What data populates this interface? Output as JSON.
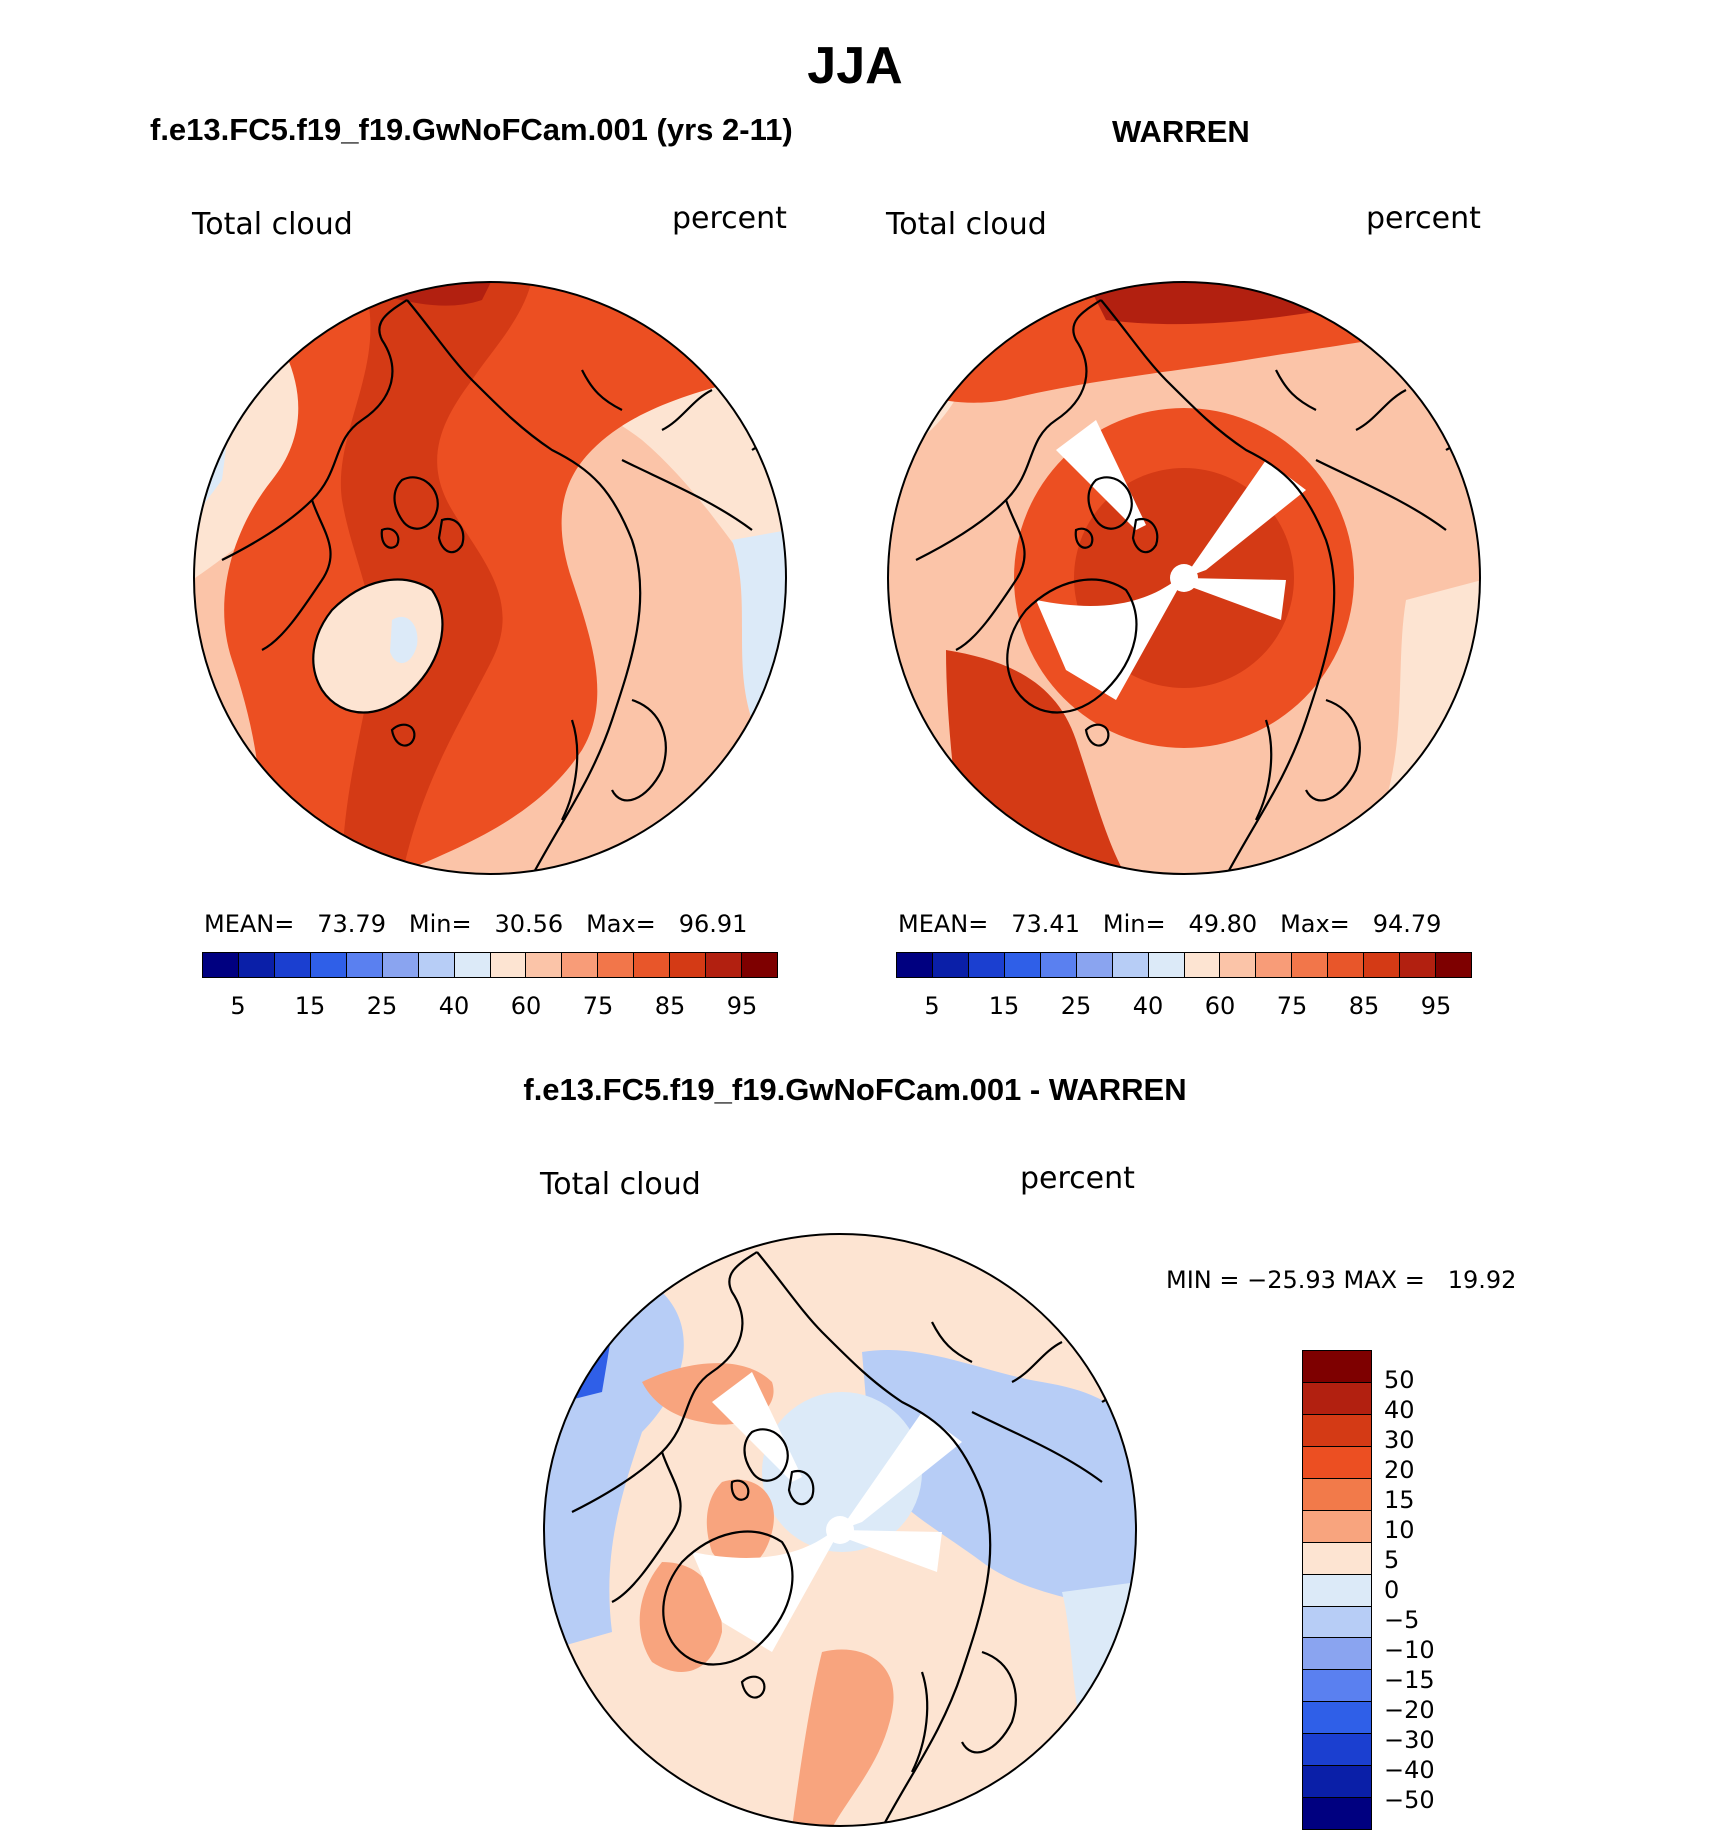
{
  "figure": {
    "title": "JJA"
  },
  "panels": [
    {
      "id": "model",
      "title": "f.e13.FC5.f19_f19.GwNoFCam.001 (yrs 2-11)",
      "variable": "Total cloud",
      "units": "percent",
      "stats": {
        "mean_label": "MEAN=",
        "mean": "73.79",
        "min_label": "Min=",
        "min": "30.56",
        "max_label": "Max=",
        "max": "96.91"
      }
    },
    {
      "id": "obs",
      "title": "WARREN",
      "variable": "Total cloud",
      "units": "percent",
      "stats": {
        "mean_label": "MEAN=",
        "mean": "73.41",
        "min_label": "Min=",
        "min": "49.80",
        "max_label": "Max=",
        "max": "94.79"
      }
    },
    {
      "id": "diff",
      "title": "f.e13.FC5.f19_f19.GwNoFCam.001 - WARREN",
      "variable": "Total cloud",
      "units": "percent",
      "stats": {
        "text": "MIN = −25.93 MAX =   19.92"
      }
    }
  ],
  "abs_colorbar": {
    "colors": [
      "#000080",
      "#0a1fa8",
      "#1b3fd0",
      "#2f5fe8",
      "#5a80f0",
      "#8aa4f0",
      "#b7cdf6",
      "#dceaf8",
      "#fde4d2",
      "#fbc4a8",
      "#f89c78",
      "#f2764a",
      "#e8562a",
      "#d43a15",
      "#b22010",
      "#7e0000"
    ],
    "ticks": [
      "5",
      "15",
      "25",
      "40",
      "60",
      "75",
      "85",
      "95"
    ]
  },
  "diff_colorbar": {
    "colors": [
      "#7e0000",
      "#b22010",
      "#d43a15",
      "#ec4f22",
      "#f27a4a",
      "#f8a47e",
      "#fde4d2",
      "#dceaf8",
      "#b7cdf6",
      "#8aa4f0",
      "#5a80f0",
      "#2f5fe8",
      "#1b3fd0",
      "#0a1fa8",
      "#000080"
    ],
    "ticks": [
      "50",
      "40",
      "30",
      "20",
      "15",
      "10",
      "5",
      "0",
      "−5",
      "−10",
      "−15",
      "−20",
      "−30",
      "−40",
      "−50"
    ]
  },
  "palette": {
    "ocean_high": "#d43a15",
    "ocean_mid": "#ec4f22",
    "land_low": "#fbc4a8",
    "pale": "#fde4d2",
    "light_blue": "#dceaf8",
    "deep_red": "#b22010",
    "diff_pos": "#f8a47e",
    "diff_neg": "#b7cdf6",
    "diff_zero": "#fde4d2",
    "missing": "#ffffff"
  }
}
